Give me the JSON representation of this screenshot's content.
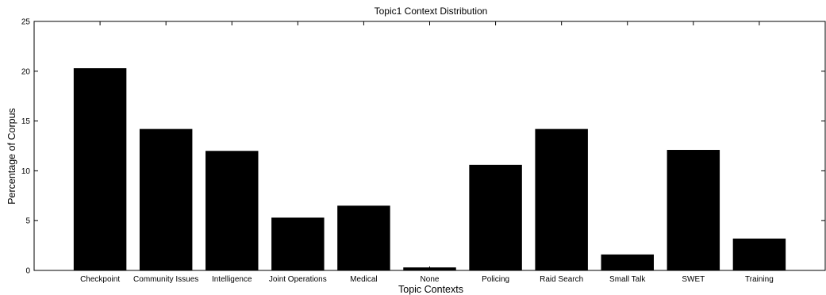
{
  "chart_data": {
    "type": "bar",
    "title": "Topic1 Context Distribution",
    "xlabel": "Topic Contexts",
    "ylabel": "Percentage of Corpus",
    "categories": [
      "Checkpoint",
      "Community Issues",
      "Intelligence",
      "Joint Operations",
      "Medical",
      "None",
      "Policing",
      "Raid Search",
      "Small Talk",
      "SWET",
      "Training"
    ],
    "values": [
      20.3,
      14.2,
      12.0,
      5.3,
      6.5,
      0.3,
      10.6,
      14.2,
      1.6,
      12.1,
      3.2
    ],
    "ylim": [
      0,
      25
    ],
    "yticks": [
      "0",
      "5",
      "10",
      "15",
      "20",
      "25"
    ],
    "grid": false,
    "bar_color": "#000000"
  }
}
